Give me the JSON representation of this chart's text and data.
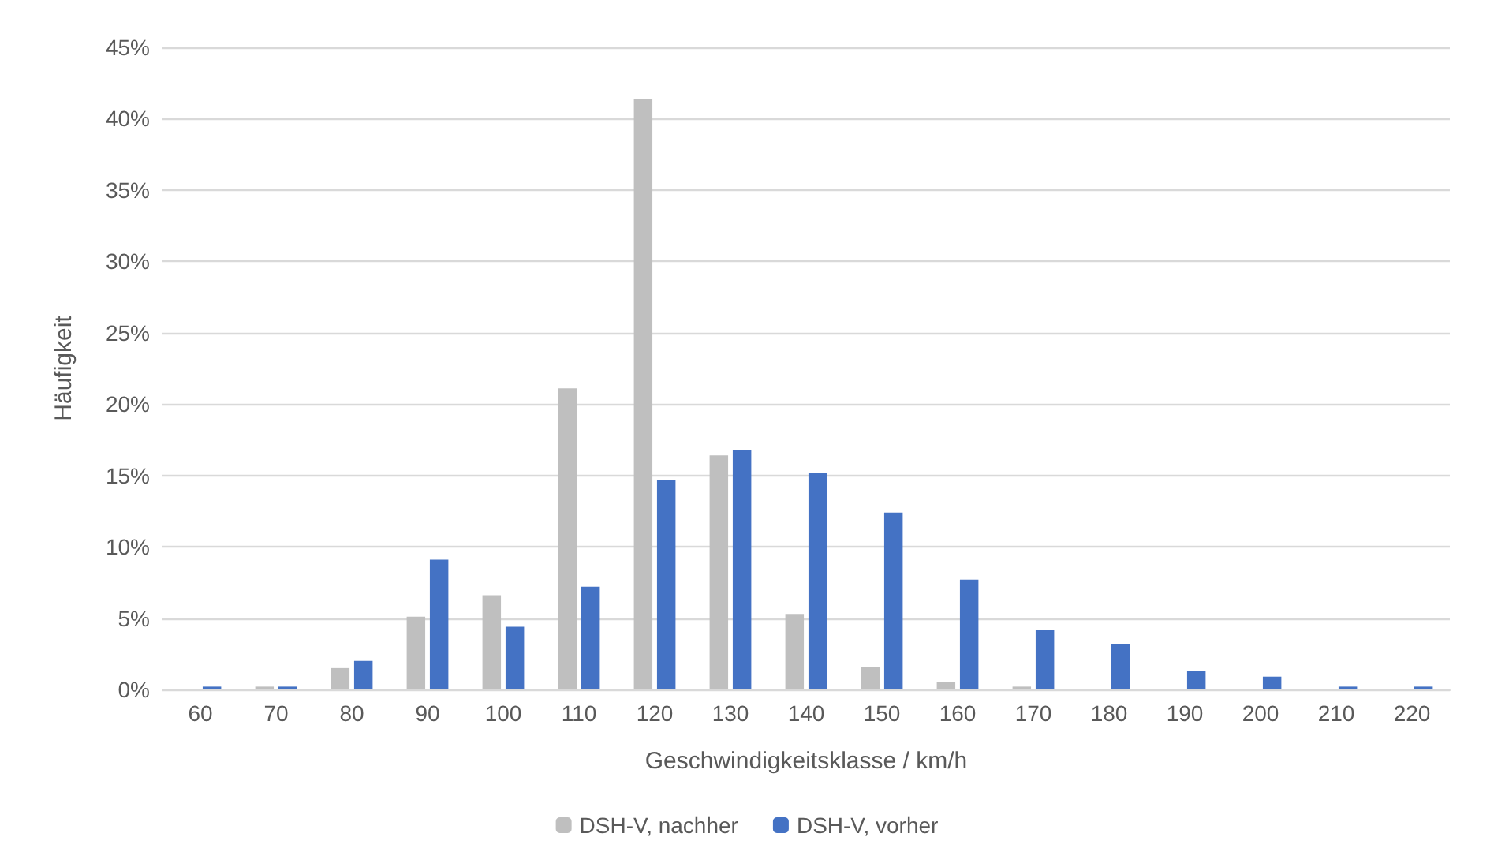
{
  "chart_data": {
    "type": "bar",
    "xlabel": "Geschwindigkeitsklasse / km/h",
    "ylabel": "Häufigkeit",
    "categories": [
      "60",
      "70",
      "80",
      "90",
      "100",
      "110",
      "120",
      "130",
      "140",
      "150",
      "160",
      "170",
      "180",
      "190",
      "200",
      "210",
      "220"
    ],
    "series": [
      {
        "name": "DSH-V, nachher",
        "color": "#bfbfbf",
        "values": [
          0,
          0.2,
          1.5,
          5.1,
          6.6,
          21.1,
          41.4,
          16.4,
          5.3,
          1.6,
          0.5,
          0.2,
          0,
          0,
          0,
          0,
          0
        ]
      },
      {
        "name": "DSH-V, vorher",
        "color": "#4472c4",
        "values": [
          0.2,
          0.2,
          2.0,
          9.1,
          4.4,
          7.2,
          14.7,
          16.8,
          15.2,
          12.4,
          7.7,
          4.2,
          3.2,
          1.3,
          0.9,
          0.2,
          0.2
        ]
      }
    ],
    "ylim": [
      0,
      45
    ],
    "yticks": [
      {
        "value": 0,
        "label": "0%"
      },
      {
        "value": 5,
        "label": "5%"
      },
      {
        "value": 10,
        "label": "10%"
      },
      {
        "value": 15,
        "label": "15%"
      },
      {
        "value": 20,
        "label": "20%"
      },
      {
        "value": 25,
        "label": "25%"
      },
      {
        "value": 30,
        "label": "30%"
      },
      {
        "value": 35,
        "label": "35%"
      },
      {
        "value": 40,
        "label": "40%"
      },
      {
        "value": 45,
        "label": "45%"
      }
    ],
    "grid": "y",
    "legend": "bottom"
  }
}
